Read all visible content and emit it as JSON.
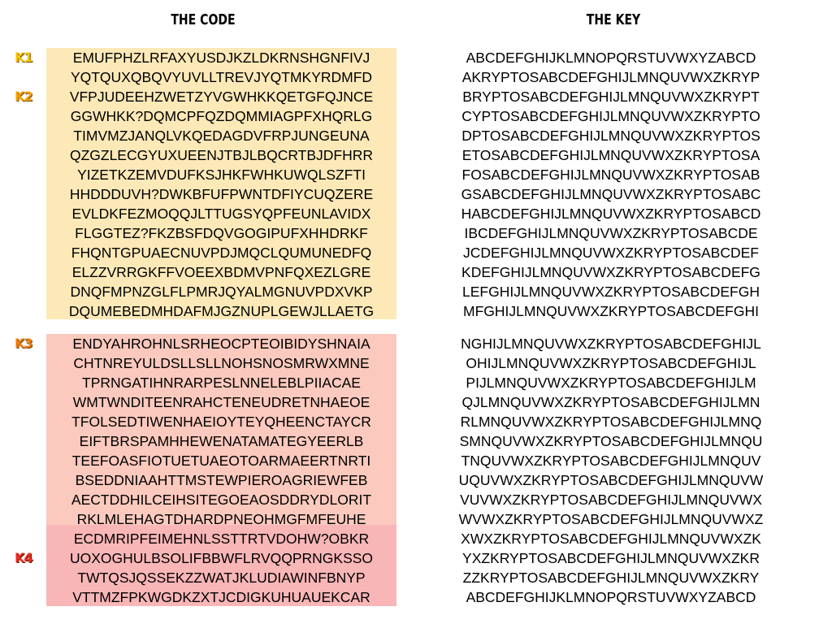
{
  "headings": {
    "code": "THE CODE",
    "key": "THE KEY"
  },
  "markers": {
    "k1": "K1",
    "k2": "K2",
    "k3": "K3",
    "k4": "K4"
  },
  "colors": {
    "k1_k2_background": "#fde9b8",
    "k3_background": "#fbc9bd",
    "k4_background": "#f9b6b7",
    "k1_marker": "#f5c400",
    "k2_marker": "#f5a300",
    "k3_marker": "#ee7a10",
    "k4_marker": "#e83020"
  },
  "code": {
    "upper": [
      "EMUFPHZLRFAXYUSDJKZLDKRNSHGNFIVJ",
      "YQTQUXQBQVYUVLLTREVJYQTMKYRDMFD",
      "VFPJUDEEHZWETZYVGWHKKQETGFQJNCE",
      "GGWHKK?DQMCPFQZDQMMIAGPFXHQRLG",
      "TIMVMZJANQLVKQEDAGDVFRPJUNGEUNA",
      "QZGZLECGYUXUEENJTBJLBQCRTBJDFHRR",
      "YIZETKZEMVDUFKSJHKFWHKUWQLSZFTI",
      "HHDDDUVH?DWKBFUFPWNTDFIYCUQZERE",
      "EVLDKFEZMOQQJLTTUGSYQPFEUNLAVIDX",
      "FLGGTEZ?FKZBSFDQVGOGIPUFXHHDRKF",
      "FHQNTGPUAECNUVPDJMQCLQUMUNEDFQ",
      "ELZZVRRGKFFVOEEXBDMVPNFQXEZLGRE",
      "DNQFMPNZGLFLPMRJQYALMGNUVPDXVKP",
      "DQUMEBEDMHDAFMJGZNUPLGEWJLLAETG"
    ],
    "lower": [
      "ENDYAHROHNLSRHEOCPTEOIBIDYSHNAIA",
      "CHTNREYULDSLLSLLNOHSNOSMRWXMNE",
      "TPRNGATIHNRARPESLNNELEBLPIIACAE",
      "WMTWNDITEENRAHCTENEUDRETNHAEOE",
      "TFOLSEDTIWENHAEIOYTEYQHEENCTAYCR",
      "EIFTBRSPAMHHEWENATAMATEGYEERLB",
      "TEEFOASFIOTUETUAEOTOARMAEERTNRTI",
      "BSEDDNIAAHTTMSTEWPIEROAGRIEWFEB",
      "AECTDDHILCEIHSITEGOEAOSDDRYDLORIT",
      "RKLMLEHAGTDHARDPNEOHMGFMFEUHE",
      "ECDMRIPFEIMEHNLSSTTRTVDOHW?OBKR",
      "UOXOGHULBSOLIFBBWFLRVQQPRNGKSSO",
      "TWTQSJQSSEKZZWATJKLUDIAWINFBNYP",
      "VTTMZFPKWGDKZXTJCDIGKUHUAUEKCAR"
    ]
  },
  "key": {
    "upper": [
      "ABCDEFGHIJKLMNOPQRSTUVWXYZABCD",
      "AKRYPTOSABCDEFGHIJLMNQUVWXZKRYP",
      "BRYPTOSABCDEFGHIJLMNQUVWXZKRYPT",
      "CYPTOSABCDEFGHIJLMNQUVWXZKRYPTO",
      "DPTOSABCDEFGHIJLMNQUVWXZKRYPTOS",
      "ETOSABCDEFGHIJLMNQUVWXZKRYPTOSA",
      "FOSABCDEFGHIJLMNQUVWXZKRYPTOSAB",
      "GSABCDEFGHIJLMNQUVWXZKRYPTOSABC",
      "HABCDEFGHIJLMNQUVWXZKRYPTOSABCD",
      "IBCDEFGHIJLMNQUVWXZKRYPTOSABCDE",
      "JCDEFGHIJLMNQUVWXZKRYPTOSABCDEF",
      "KDEFGHIJLMNQUVWXZKRYPTOSABCDEFG",
      "LEFGHIJLMNQUVWXZKRYPTOSABCDEFGH",
      "MFGHIJLMNQUVWXZKRYPTOSABCDEFGHI"
    ],
    "lower": [
      "NGHIJLMNQUVWXZKRYPTOSABCDEFGHIJL",
      "OHIJLMNQUVWXZKRYPTOSABCDEFGHIJL",
      "PIJLMNQUVWXZKRYPTOSABCDEFGHIJLM",
      "QJLMNQUVWXZKRYPTOSABCDEFGHIJLMN",
      "RLMNQUVWXZKRYPTOSABCDEFGHIJLMNQ",
      "SMNQUVWXZKRYPTOSABCDEFGHIJLMNQU",
      "TNQUVWXZKRYPTOSABCDEFGHIJLMNQUV",
      "UQUVWXZKRYPTOSABCDEFGHIJLMNQUVW",
      "VUVWXZKRYPTOSABCDEFGHIJLMNQUVWX",
      "WVWXZKRYPTOSABCDEFGHIJLMNQUVWXZ",
      "XWXZKRYPTOSABCDEFGHIJLMNQUVWXZK",
      "YXZKRYPTOSABCDEFGHIJLMNQUVWXZKR",
      "ZZKRYPTOSABCDEFGHIJLMNQUVWXZKRY",
      "ABCDEFGHIJKLMNOPQRSTUVWXYZABCD"
    ]
  }
}
